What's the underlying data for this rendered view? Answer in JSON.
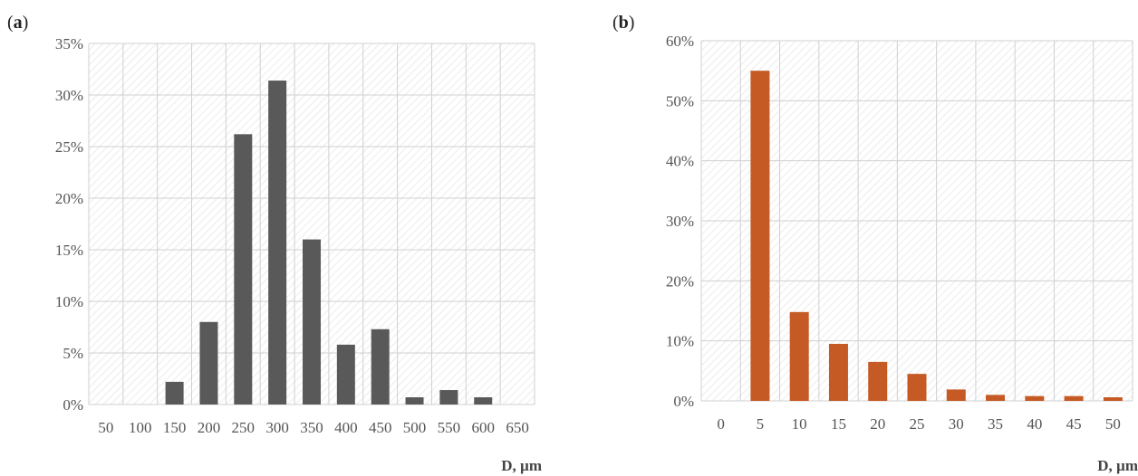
{
  "colors": {
    "panel_a_bar": "#595959",
    "panel_b_bar": "#c55a24",
    "grid": "#d0d0d0",
    "hatch": "#e4e4e4"
  },
  "chart_data": [
    {
      "panel": "a",
      "type": "bar",
      "categories": [
        "50",
        "100",
        "150",
        "200",
        "250",
        "300",
        "350",
        "400",
        "450",
        "500",
        "550",
        "600",
        "650"
      ],
      "values": [
        0,
        0,
        2.2,
        8.0,
        26.2,
        31.4,
        16.0,
        5.8,
        7.3,
        0.7,
        1.4,
        0.7,
        0
      ],
      "yticks": [
        "0%",
        "5%",
        "10%",
        "15%",
        "20%",
        "25%",
        "30%",
        "35%"
      ],
      "ylim": [
        0,
        35
      ],
      "xlabel": "D, µm",
      "ylabel": "",
      "title": "",
      "grid": true
    },
    {
      "panel": "b",
      "type": "bar",
      "categories": [
        "0",
        "5",
        "10",
        "15",
        "20",
        "25",
        "30",
        "35",
        "40",
        "45",
        "50"
      ],
      "values": [
        0,
        55.0,
        14.8,
        9.5,
        6.5,
        4.5,
        1.9,
        1.0,
        0.8,
        0.8,
        0.6
      ],
      "yticks": [
        "0%",
        "10%",
        "20%",
        "30%",
        "40%",
        "50%",
        "60%"
      ],
      "ylim": [
        0,
        60
      ],
      "xlabel": "D, µm",
      "ylabel": "",
      "title": "",
      "grid": true
    }
  ],
  "panel_labels": {
    "a": "a",
    "b": "b"
  }
}
